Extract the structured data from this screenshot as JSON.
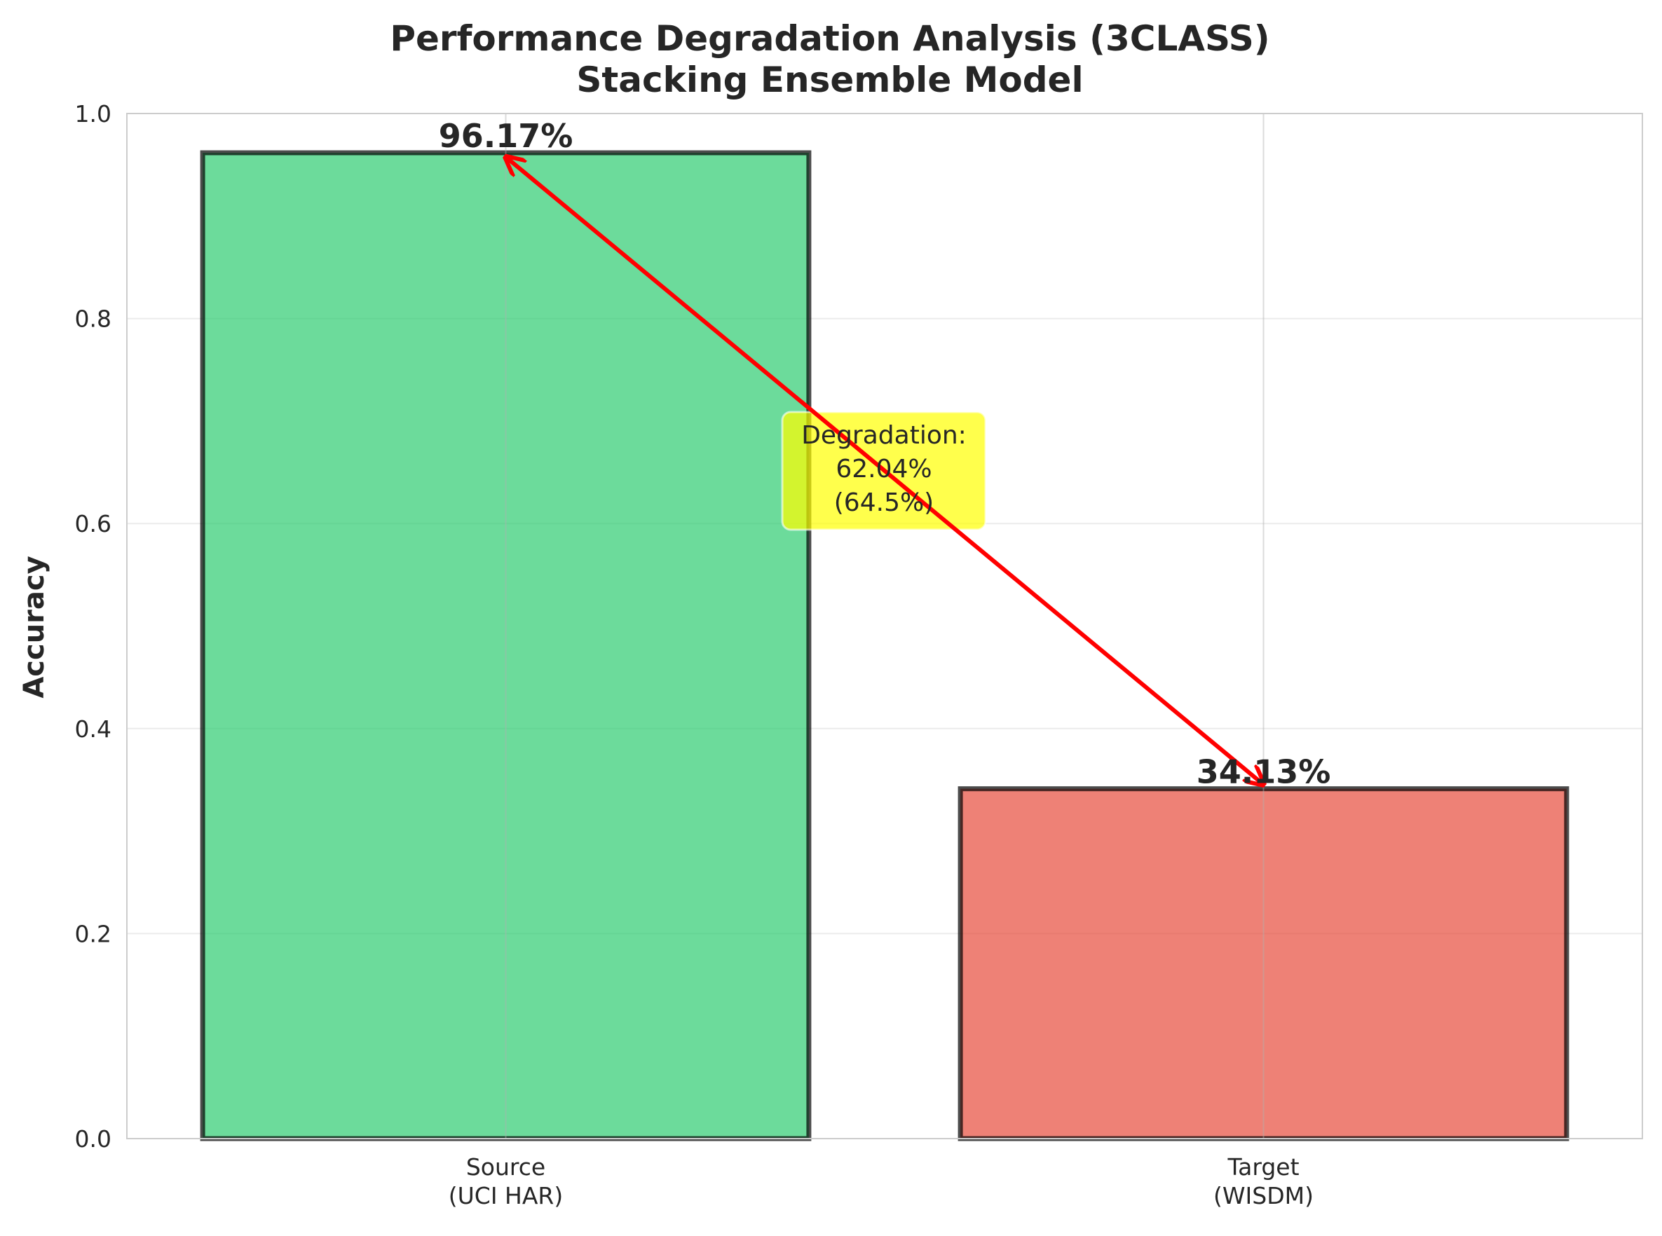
{
  "chart_data": {
    "type": "bar",
    "title": "Performance Degradation Analysis (3CLASS)",
    "subtitle": "Stacking Ensemble Model",
    "xlabel": "",
    "ylabel": "Accuracy",
    "ylim": [
      0,
      1.0
    ],
    "yticks": [
      0.0,
      0.2,
      0.4,
      0.6,
      0.8,
      1.0
    ],
    "ytick_labels": [
      "0.0",
      "0.2",
      "0.4",
      "0.6",
      "0.8",
      "1.0"
    ],
    "grid": true,
    "categories": [
      {
        "line1": "Source",
        "line2": "(UCI HAR)"
      },
      {
        "line1": "Target",
        "line2": "(WISDM)"
      }
    ],
    "values": [
      0.9617,
      0.3413
    ],
    "value_labels": [
      "96.17%",
      "34.13%"
    ],
    "colors": [
      "#2ecc71",
      "#e74c3c"
    ],
    "annotation": {
      "lines": [
        "Degradation:",
        "62.04%",
        "(64.5%)"
      ],
      "box_color": "#ffff00",
      "arrow_color": "#ff0000"
    }
  }
}
